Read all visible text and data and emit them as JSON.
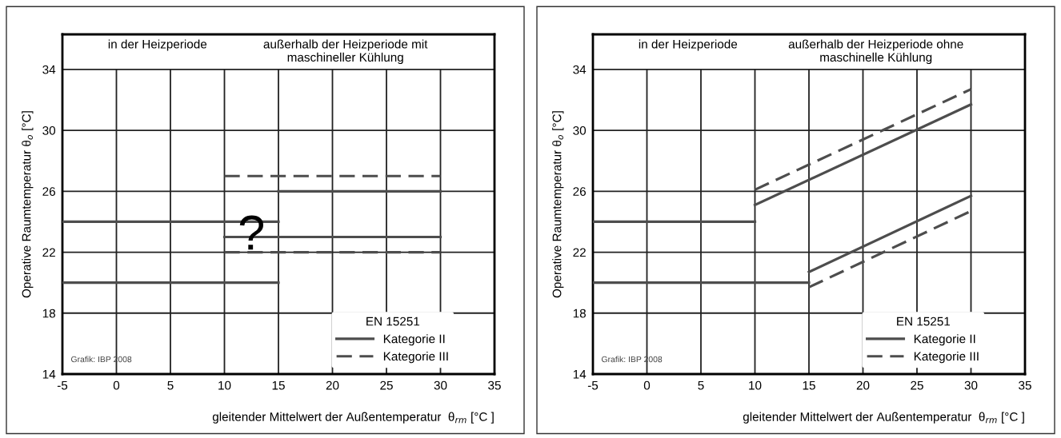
{
  "chart_data": [
    {
      "type": "line",
      "xlabel": "gleitender Mittelwert der Außentemperatur  θ$_{rm}$ [°C ]",
      "ylabel": "Operative Raumtemperatur θ$_{o}$ [°C]",
      "legend_title": "EN 15251",
      "annotations": [
        "in der Heizperiode",
        "außerhalb der Heizperiode mit\nmaschineller Kühlung",
        {
          "text": "?",
          "x": 12.5,
          "y": 23
        },
        "Grafik: IBP 2008"
      ],
      "xlim": [
        -5,
        35
      ],
      "ylim": [
        14,
        36.3
      ],
      "xticks": [
        -5,
        0,
        5,
        10,
        15,
        20,
        25,
        30,
        35
      ],
      "yticks": [
        14,
        18,
        22,
        26,
        30,
        34
      ],
      "grid": true,
      "legend": "bottom right",
      "marker": "none",
      "series": [
        {
          "name": "Kategorie II",
          "color": "#4d4d4d",
          "line_style": "solid",
          "x": [
            -5,
            15
          ],
          "values": [
            24,
            24
          ]
        },
        {
          "color": "#4d4d4d",
          "line_style": "solid",
          "x": [
            15,
            30
          ],
          "values": [
            26,
            26
          ]
        },
        {
          "color": "#4d4d4d",
          "line_style": "solid",
          "x": [
            -5,
            15
          ],
          "values": [
            20,
            20
          ]
        },
        {
          "color": "#4d4d4d",
          "line_style": "solid",
          "x": [
            10,
            30
          ],
          "values": [
            23,
            23
          ]
        },
        {
          "name": "Kategorie III",
          "color": "#4d4d4d",
          "line_style": "dashed",
          "x": [
            10,
            30
          ],
          "values": [
            27,
            27
          ]
        },
        {
          "color": "#4d4d4d",
          "line_style": "dashed",
          "x": [
            10,
            30
          ],
          "values": [
            22,
            22
          ]
        }
      ]
    },
    {
      "type": "line",
      "xlabel": "gleitender Mittelwert der Außentemperatur  θ$_{rm}$ [°C ]",
      "ylabel": "Operative Raumtemperatur θ$_{o}$ [°C]",
      "legend_title": "EN 15251",
      "annotations": [
        "in der Heizperiode",
        "außerhalb der Heizperiode ohne\nmaschinelle Kühlung",
        "Grafik: IBP 2008"
      ],
      "xlim": [
        -5,
        35
      ],
      "ylim": [
        14,
        36.3
      ],
      "xticks": [
        -5,
        0,
        5,
        10,
        15,
        20,
        25,
        30,
        35
      ],
      "yticks": [
        14,
        18,
        22,
        26,
        30,
        34
      ],
      "grid": true,
      "legend": "bottom right",
      "marker": "none",
      "series": [
        {
          "name": "Kategorie II",
          "color": "#4d4d4d",
          "line_style": "solid",
          "x": [
            -5,
            10
          ],
          "values": [
            24,
            24
          ]
        },
        {
          "color": "#4d4d4d",
          "line_style": "solid",
          "x": [
            10,
            30
          ],
          "values": [
            25.1,
            31.7
          ]
        },
        {
          "color": "#4d4d4d",
          "line_style": "solid",
          "x": [
            -5,
            15
          ],
          "values": [
            20,
            20
          ]
        },
        {
          "color": "#4d4d4d",
          "line_style": "solid",
          "x": [
            15,
            30
          ],
          "values": [
            20.7,
            25.7
          ]
        },
        {
          "name": "Kategorie III",
          "color": "#4d4d4d",
          "line_style": "dashed",
          "x": [
            10,
            30
          ],
          "values": [
            26.1,
            32.7
          ]
        },
        {
          "color": "#4d4d4d",
          "line_style": "dashed",
          "x": [
            15,
            30
          ],
          "values": [
            19.7,
            24.7
          ]
        }
      ]
    }
  ]
}
